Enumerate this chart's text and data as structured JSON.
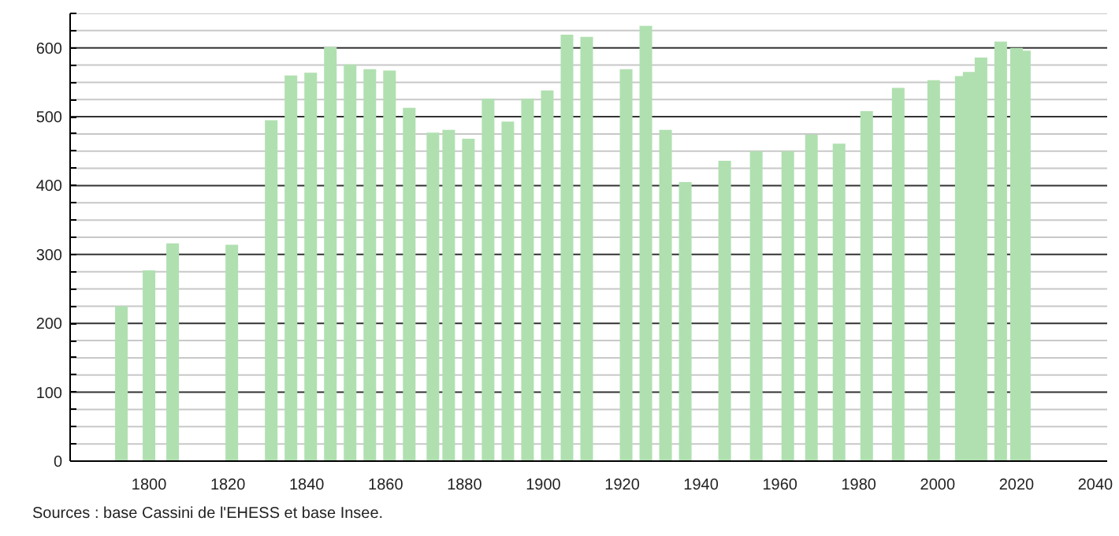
{
  "chart_data": {
    "type": "bar",
    "x": [
      1793,
      1800,
      1806,
      1821,
      1831,
      1836,
      1841,
      1846,
      1851,
      1856,
      1861,
      1866,
      1872,
      1876,
      1881,
      1886,
      1891,
      1896,
      1901,
      1906,
      1911,
      1921,
      1926,
      1931,
      1936,
      1946,
      1954,
      1962,
      1968,
      1975,
      1982,
      1990,
      1999,
      2006,
      2008,
      2011,
      2016,
      2020,
      2022
    ],
    "values": [
      225,
      277,
      316,
      314,
      495,
      560,
      564,
      601,
      576,
      569,
      567,
      513,
      477,
      481,
      468,
      526,
      493,
      526,
      538,
      619,
      616,
      569,
      632,
      481,
      405,
      436,
      450,
      450,
      474,
      461,
      508,
      542,
      553,
      559,
      565,
      586,
      609,
      600,
      596
    ],
    "color": "#b0e0b0",
    "xlim": [
      1780,
      2043
    ],
    "xticks": [
      1800,
      1820,
      1840,
      1860,
      1880,
      1900,
      1920,
      1940,
      1960,
      1980,
      2000,
      2020,
      2040
    ],
    "ylim": [
      0,
      650
    ],
    "yticks": [
      0,
      {
        "value": 25,
        "label": null
      },
      {
        "value": 50,
        "label": null
      },
      {
        "value": 75,
        "label": null
      },
      100,
      {
        "value": 125,
        "label": null
      },
      {
        "value": 150,
        "label": null
      },
      {
        "value": 175,
        "label": null
      },
      200,
      {
        "value": 225,
        "label": null
      },
      {
        "value": 250,
        "label": null
      },
      {
        "value": 275,
        "label": null
      },
      300,
      {
        "value": 325,
        "label": null
      },
      {
        "value": 350,
        "label": null
      },
      {
        "value": 375,
        "label": null
      },
      400,
      {
        "value": 425,
        "label": null
      },
      {
        "value": 450,
        "label": null
      },
      {
        "value": 475,
        "label": null
      },
      500,
      {
        "value": 525,
        "label": null
      },
      {
        "value": 550,
        "label": null
      },
      {
        "value": 575,
        "label": null
      },
      600,
      {
        "value": 625,
        "label": null
      },
      {
        "value": 650,
        "label": null
      }
    ],
    "grid": "y",
    "annotations": [
      "Sources : base Cassini de l'EHESS et base Insee."
    ]
  }
}
